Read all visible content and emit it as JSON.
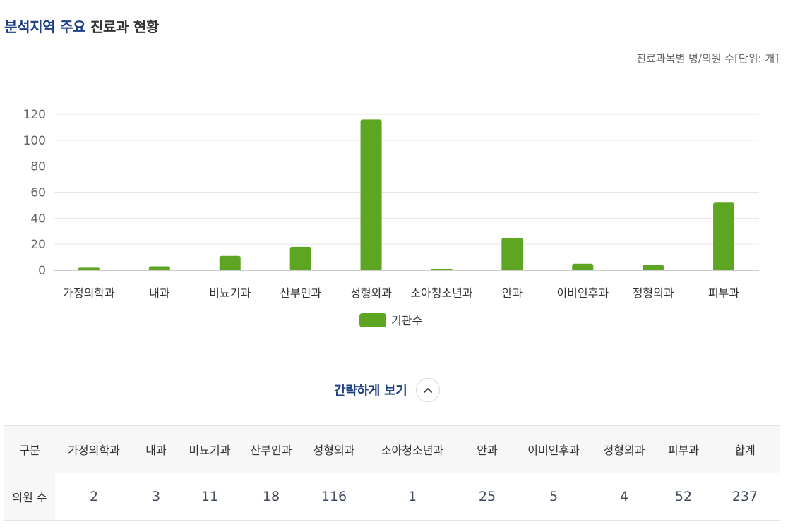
{
  "header": {
    "title_accent": "분석지역 주요",
    "title_rest": "진료과 현황",
    "unit_note": "진료과목별 병/의원 수[단위: 개]"
  },
  "colors": {
    "bar": "#5ea524",
    "accent": "#1d3f86",
    "grid": "#e6e6e6",
    "axis": "#cccccc"
  },
  "chart_data": {
    "type": "bar",
    "categories": [
      "가정의학과",
      "내과",
      "비뇨기과",
      "산부인과",
      "성형외과",
      "소아청소년과",
      "안과",
      "이비인후과",
      "정형외과",
      "피부과"
    ],
    "series": [
      {
        "name": "기관수",
        "values": [
          2,
          3,
          11,
          18,
          116,
          1,
          25,
          5,
          4,
          52
        ]
      }
    ],
    "yticks": [
      0,
      20,
      40,
      60,
      80,
      100,
      120
    ],
    "ylim": [
      0,
      120
    ],
    "grid": true,
    "legend_position": "bottom-center"
  },
  "toggle": {
    "label": "간략하게 보기",
    "icon": "chevron-up-icon"
  },
  "table": {
    "header_label": "구분",
    "columns": [
      "가정의학과",
      "내과",
      "비뇨기과",
      "산부인과",
      "성형외과",
      "소아청소년과",
      "안과",
      "이비인후과",
      "정형외과",
      "피부과",
      "합계"
    ],
    "row_label": "의원 수",
    "values": [
      "2",
      "3",
      "11",
      "18",
      "116",
      "1",
      "25",
      "5",
      "4",
      "52",
      "237"
    ]
  }
}
